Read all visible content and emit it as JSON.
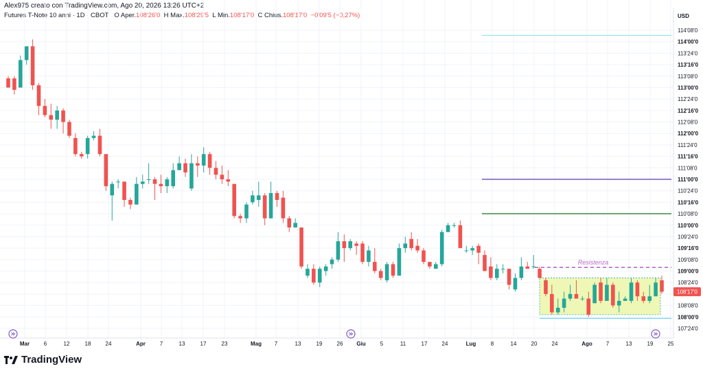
{
  "header": {
    "byline": "Alex975 creato con TradingView.com, Ago 20, 2026 13:26 UTC+2"
  },
  "info": {
    "symbol": "Futures T-Note 10 anni · 1D · CBOT",
    "open_label": "O",
    "open_text": "Aper.",
    "open_value": "108'26'0",
    "high_label": "H",
    "high_text": "Max.",
    "high_value": "108'29'5",
    "low_label": "L",
    "low_text": "Min.",
    "low_value": "108'17'0",
    "close_label": "C",
    "close_text": "Chius.",
    "close_value": "108'17'0",
    "change_value": "−0'09'5 (−0,27%)"
  },
  "currency": "USD",
  "price_badge": "108'17'0",
  "brand": "TradingView",
  "colors": {
    "up": "#26a69a",
    "down": "#ef5350",
    "resistance": "#9c27b0",
    "zone_fill": "#eef7b5",
    "zone_border": "#26a69a",
    "line_cyan": "#80deea",
    "line_purple": "#5e35b1",
    "line_green": "#2e7d32",
    "line_blue": "#4fc3f7",
    "badge": "#ef5350"
  },
  "chart_data": {
    "type": "candlestick",
    "price_unit": "32nds notation (points'32nds'fraction)",
    "y_ticks": [
      "114'08'0",
      "114'00'0",
      "113'24'0",
      "113'16'0",
      "113'08'0",
      "113'00'0",
      "112'24'0",
      "112'16'0",
      "112'08'0",
      "112'00'0",
      "111'24'0",
      "111'16'0",
      "111'08'0",
      "111'00'0",
      "110'24'0",
      "110'16'0",
      "110'08'0",
      "110'00'0",
      "109'24'0",
      "109'16'0",
      "109'08'0",
      "109'00'0",
      "108'24'0",
      "108'16'0",
      "108'08'0",
      "108'00'0",
      "107'24'0"
    ],
    "y_major": [
      "114'00'0",
      "113'16'0",
      "113'00'0",
      "112'16'0",
      "112'00'0",
      "111'16'0",
      "111'00'0",
      "110'16'0",
      "110'00'0",
      "109'16'0",
      "109'00'0",
      "108'00'0"
    ],
    "x_ticks": [
      "Mar",
      "6",
      "12",
      "18",
      "24",
      "Apr",
      "7",
      "13",
      "17",
      "23",
      "Mag",
      "7",
      "13",
      "19",
      "26",
      "Giu",
      "5",
      "11",
      "17",
      "24",
      "Lug",
      "8",
      "14",
      "20",
      "24",
      "Ago",
      "7",
      "13",
      "19",
      "25"
    ],
    "x_months": [
      "Mar",
      "Apr",
      "Mag",
      "Giu",
      "Lug",
      "Ago"
    ],
    "ylim": [
      107.7,
      114.4
    ],
    "candles": [
      {
        "o": 113.2,
        "h": 113.25,
        "l": 113.0,
        "c": 113.0
      },
      {
        "o": 113.2,
        "h": 113.25,
        "l": 112.85,
        "c": 112.95
      },
      {
        "o": 113.0,
        "h": 113.7,
        "l": 113.0,
        "c": 113.6
      },
      {
        "o": 113.6,
        "h": 113.9,
        "l": 113.5,
        "c": 113.9
      },
      {
        "o": 113.9,
        "h": 114.05,
        "l": 112.95,
        "c": 113.05
      },
      {
        "o": 113.05,
        "h": 113.1,
        "l": 112.4,
        "c": 112.6
      },
      {
        "o": 112.6,
        "h": 112.75,
        "l": 112.35,
        "c": 112.4
      },
      {
        "o": 112.4,
        "h": 112.65,
        "l": 112.1,
        "c": 112.3
      },
      {
        "o": 112.3,
        "h": 112.6,
        "l": 112.1,
        "c": 112.5
      },
      {
        "o": 112.5,
        "h": 112.55,
        "l": 112.0,
        "c": 112.25
      },
      {
        "o": 112.25,
        "h": 112.3,
        "l": 111.9,
        "c": 111.95
      },
      {
        "o": 111.9,
        "h": 112.0,
        "l": 111.5,
        "c": 111.55
      },
      {
        "o": 111.55,
        "h": 111.6,
        "l": 111.45,
        "c": 111.5
      },
      {
        "o": 111.55,
        "h": 111.95,
        "l": 111.45,
        "c": 111.9
      },
      {
        "o": 111.9,
        "h": 112.05,
        "l": 111.85,
        "c": 111.95
      },
      {
        "o": 111.95,
        "h": 112.1,
        "l": 111.5,
        "c": 111.55
      },
      {
        "o": 111.55,
        "h": 111.55,
        "l": 110.75,
        "c": 110.85
      },
      {
        "o": 110.65,
        "h": 110.95,
        "l": 110.1,
        "c": 110.9
      },
      {
        "o": 110.95,
        "h": 111.0,
        "l": 110.8,
        "c": 110.95
      },
      {
        "o": 110.95,
        "h": 110.95,
        "l": 110.4,
        "c": 110.55
      },
      {
        "o": 110.55,
        "h": 110.6,
        "l": 110.35,
        "c": 110.45
      },
      {
        "o": 110.45,
        "h": 111.05,
        "l": 110.45,
        "c": 110.9
      },
      {
        "o": 110.9,
        "h": 111.1,
        "l": 110.8,
        "c": 110.95
      },
      {
        "o": 111.0,
        "h": 111.35,
        "l": 110.9,
        "c": 111.0
      },
      {
        "o": 111.0,
        "h": 111.05,
        "l": 110.55,
        "c": 110.9
      },
      {
        "o": 110.9,
        "h": 111.1,
        "l": 110.7,
        "c": 110.85
      },
      {
        "o": 110.85,
        "h": 111.05,
        "l": 110.7,
        "c": 111.0
      },
      {
        "o": 110.85,
        "h": 111.35,
        "l": 110.8,
        "c": 111.2
      },
      {
        "o": 111.2,
        "h": 111.5,
        "l": 111.2,
        "c": 111.35
      },
      {
        "o": 111.35,
        "h": 111.45,
        "l": 111.05,
        "c": 111.15
      },
      {
        "o": 110.8,
        "h": 111.55,
        "l": 110.75,
        "c": 111.35
      },
      {
        "o": 111.35,
        "h": 111.5,
        "l": 111.05,
        "c": 111.3
      },
      {
        "o": 111.3,
        "h": 111.7,
        "l": 111.15,
        "c": 111.55
      },
      {
        "o": 111.55,
        "h": 111.6,
        "l": 111.1,
        "c": 111.25
      },
      {
        "o": 111.25,
        "h": 111.4,
        "l": 111.0,
        "c": 111.1
      },
      {
        "o": 111.1,
        "h": 111.3,
        "l": 110.9,
        "c": 111.0
      },
      {
        "o": 111.0,
        "h": 111.2,
        "l": 110.85,
        "c": 110.95
      },
      {
        "o": 110.9,
        "h": 110.9,
        "l": 110.15,
        "c": 110.2
      },
      {
        "o": 110.2,
        "h": 110.25,
        "l": 110.05,
        "c": 110.15
      },
      {
        "o": 110.15,
        "h": 110.5,
        "l": 110.05,
        "c": 110.45
      },
      {
        "o": 110.5,
        "h": 110.75,
        "l": 110.45,
        "c": 110.65
      },
      {
        "o": 110.55,
        "h": 110.95,
        "l": 110.4,
        "c": 110.65
      },
      {
        "o": 110.65,
        "h": 110.7,
        "l": 110.0,
        "c": 110.15
      },
      {
        "o": 110.15,
        "h": 110.95,
        "l": 110.15,
        "c": 110.7
      },
      {
        "o": 110.7,
        "h": 110.75,
        "l": 110.4,
        "c": 110.55
      },
      {
        "o": 110.6,
        "h": 110.75,
        "l": 110.05,
        "c": 110.15
      },
      {
        "o": 110.15,
        "h": 110.2,
        "l": 109.85,
        "c": 109.95
      },
      {
        "o": 109.95,
        "h": 110.15,
        "l": 109.95,
        "c": 110.05
      },
      {
        "o": 109.95,
        "h": 109.95,
        "l": 109.05,
        "c": 109.1
      },
      {
        "o": 108.9,
        "h": 109.15,
        "l": 108.85,
        "c": 109.05
      },
      {
        "o": 109.05,
        "h": 109.15,
        "l": 108.7,
        "c": 108.75
      },
      {
        "o": 108.75,
        "h": 109.1,
        "l": 108.65,
        "c": 109.05
      },
      {
        "o": 109.0,
        "h": 109.15,
        "l": 108.9,
        "c": 109.1
      },
      {
        "o": 109.15,
        "h": 109.3,
        "l": 109.05,
        "c": 109.25
      },
      {
        "o": 109.25,
        "h": 109.85,
        "l": 109.2,
        "c": 109.65
      },
      {
        "o": 109.65,
        "h": 109.8,
        "l": 109.2,
        "c": 109.5
      },
      {
        "o": 109.5,
        "h": 109.7,
        "l": 109.45,
        "c": 109.65
      },
      {
        "o": 109.6,
        "h": 109.65,
        "l": 109.35,
        "c": 109.55
      },
      {
        "o": 109.6,
        "h": 109.65,
        "l": 109.15,
        "c": 109.2
      },
      {
        "o": 109.2,
        "h": 109.55,
        "l": 109.1,
        "c": 109.45
      },
      {
        "o": 109.2,
        "h": 109.5,
        "l": 108.95,
        "c": 109.0
      },
      {
        "o": 109.0,
        "h": 109.05,
        "l": 108.8,
        "c": 108.85
      },
      {
        "o": 108.8,
        "h": 109.2,
        "l": 108.75,
        "c": 109.15
      },
      {
        "o": 109.15,
        "h": 109.2,
        "l": 108.85,
        "c": 108.9
      },
      {
        "o": 108.9,
        "h": 109.6,
        "l": 108.9,
        "c": 109.5
      },
      {
        "o": 109.5,
        "h": 109.75,
        "l": 109.4,
        "c": 109.6
      },
      {
        "o": 109.7,
        "h": 109.85,
        "l": 109.45,
        "c": 109.5
      },
      {
        "o": 109.55,
        "h": 109.7,
        "l": 109.4,
        "c": 109.45
      },
      {
        "o": 109.45,
        "h": 109.5,
        "l": 109.15,
        "c": 109.2
      },
      {
        "o": 109.2,
        "h": 109.2,
        "l": 109.05,
        "c": 109.1
      },
      {
        "o": 109.05,
        "h": 109.2,
        "l": 109.05,
        "c": 109.15
      },
      {
        "o": 109.15,
        "h": 109.9,
        "l": 109.1,
        "c": 109.85
      },
      {
        "o": 109.85,
        "h": 110.05,
        "l": 109.85,
        "c": 110.0
      },
      {
        "o": 110.0,
        "h": 110.05,
        "l": 109.95,
        "c": 110.0
      },
      {
        "o": 110.0,
        "h": 110.1,
        "l": 109.5,
        "c": 109.5
      },
      {
        "o": 109.45,
        "h": 109.55,
        "l": 109.4,
        "c": 109.45
      },
      {
        "o": 109.45,
        "h": 109.55,
        "l": 109.35,
        "c": 109.5
      },
      {
        "o": 109.55,
        "h": 109.6,
        "l": 109.15,
        "c": 109.4
      },
      {
        "o": 109.35,
        "h": 109.45,
        "l": 109.0,
        "c": 109.0
      },
      {
        "o": 109.1,
        "h": 109.3,
        "l": 108.8,
        "c": 108.85
      },
      {
        "o": 108.85,
        "h": 109.15,
        "l": 108.8,
        "c": 109.05
      },
      {
        "o": 109.05,
        "h": 109.15,
        "l": 108.95,
        "c": 109.05
      },
      {
        "o": 109.05,
        "h": 109.05,
        "l": 108.6,
        "c": 108.7
      },
      {
        "o": 108.6,
        "h": 108.95,
        "l": 108.55,
        "c": 108.85
      },
      {
        "o": 108.85,
        "h": 109.3,
        "l": 108.8,
        "c": 109.1
      },
      {
        "o": 109.1,
        "h": 109.2,
        "l": 109.05,
        "c": 109.05
      },
      {
        "o": 109.1,
        "h": 109.35,
        "l": 109.05,
        "c": 109.1
      },
      {
        "o": 109.05,
        "h": 109.1,
        "l": 108.85,
        "c": 108.85
      },
      {
        "o": 108.8,
        "h": 108.85,
        "l": 108.45,
        "c": 108.5
      },
      {
        "o": 108.5,
        "h": 108.7,
        "l": 108.05,
        "c": 108.1
      },
      {
        "o": 108.1,
        "h": 108.4,
        "l": 108.05,
        "c": 108.2
      },
      {
        "o": 108.2,
        "h": 108.55,
        "l": 108.1,
        "c": 108.4
      },
      {
        "o": 108.4,
        "h": 108.7,
        "l": 108.35,
        "c": 108.5
      },
      {
        "o": 108.5,
        "h": 108.8,
        "l": 108.4,
        "c": 108.4
      },
      {
        "o": 108.4,
        "h": 108.45,
        "l": 108.35,
        "c": 108.4
      },
      {
        "o": 108.4,
        "h": 108.55,
        "l": 108.0,
        "c": 108.05
      },
      {
        "o": 108.3,
        "h": 108.75,
        "l": 108.3,
        "c": 108.7
      },
      {
        "o": 108.75,
        "h": 108.85,
        "l": 108.3,
        "c": 108.35
      },
      {
        "o": 108.35,
        "h": 108.85,
        "l": 108.35,
        "c": 108.7
      },
      {
        "o": 108.7,
        "h": 108.75,
        "l": 108.2,
        "c": 108.25
      },
      {
        "o": 108.25,
        "h": 108.55,
        "l": 108.1,
        "c": 108.35
      },
      {
        "o": 108.35,
        "h": 108.45,
        "l": 108.35,
        "c": 108.4
      },
      {
        "o": 108.35,
        "h": 108.85,
        "l": 108.3,
        "c": 108.75
      },
      {
        "o": 108.75,
        "h": 108.8,
        "l": 108.35,
        "c": 108.45
      },
      {
        "o": 108.45,
        "h": 108.55,
        "l": 108.3,
        "c": 108.35
      },
      {
        "o": 108.35,
        "h": 108.7,
        "l": 108.3,
        "c": 108.45
      },
      {
        "o": 108.45,
        "h": 108.85,
        "l": 108.45,
        "c": 108.75
      },
      {
        "o": 108.8,
        "h": 108.9,
        "l": 108.5,
        "c": 108.55
      }
    ],
    "annotations": {
      "resistance_label": "Resistenza",
      "resistance_level": 109.08,
      "zone": {
        "top": 108.85,
        "bottom": 108.05
      },
      "h_lines": [
        {
          "name": "cyan-top",
          "price": 114.14
        },
        {
          "name": "purple",
          "price": 111.0
        },
        {
          "name": "green",
          "price": 110.25
        },
        {
          "name": "blue-bottom",
          "price": 107.97
        }
      ]
    }
  }
}
